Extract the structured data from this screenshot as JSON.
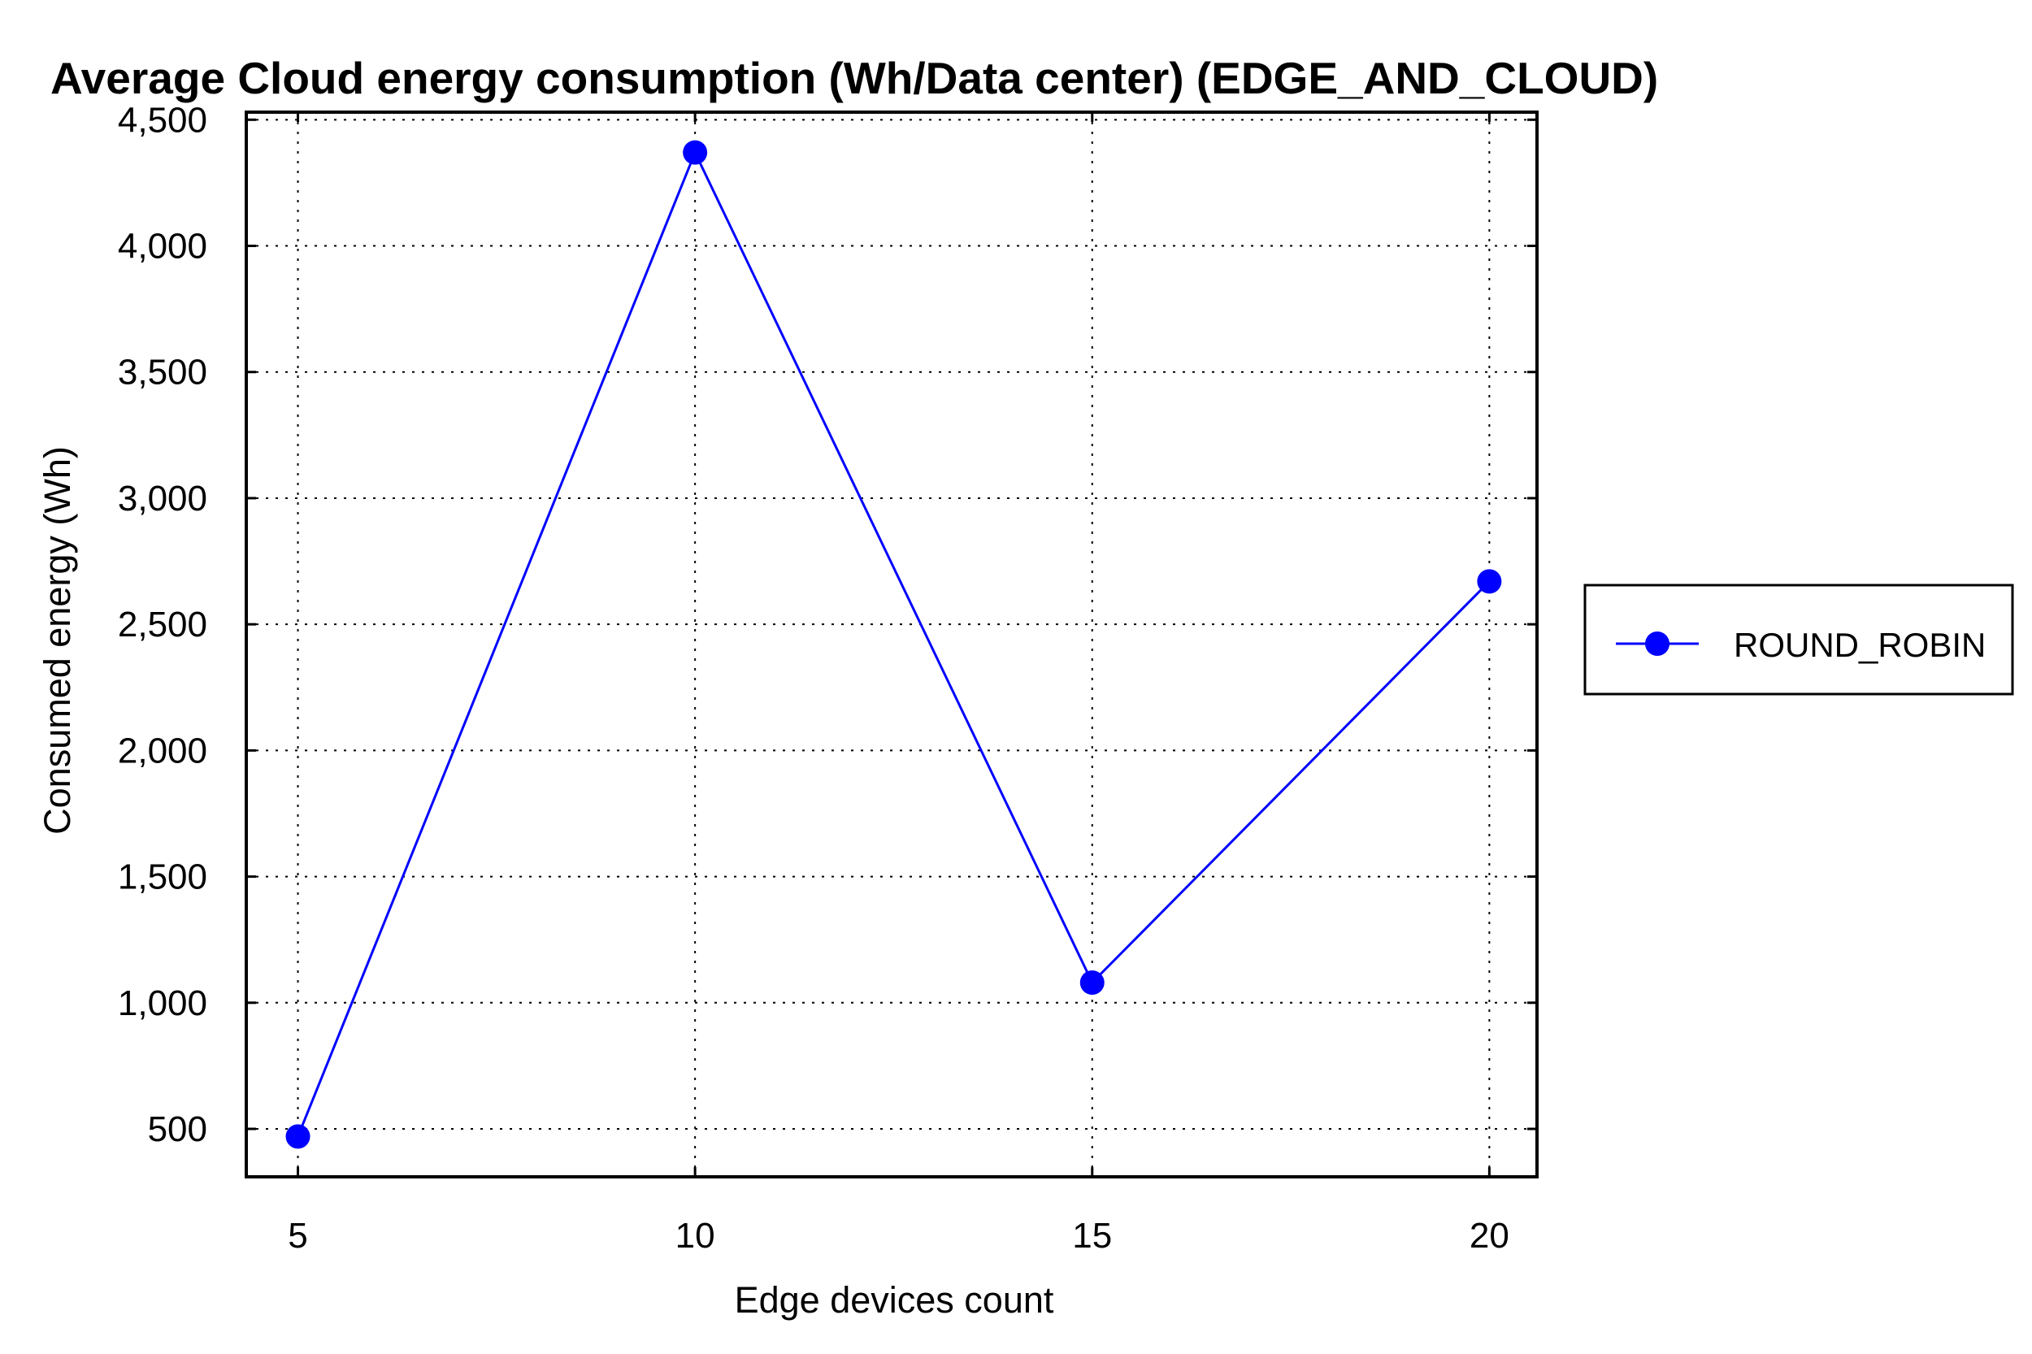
{
  "chart_data": {
    "type": "line",
    "title": "Average Cloud energy consumption (Wh/Data center) (EDGE_AND_CLOUD)",
    "xlabel": "Edge devices count",
    "ylabel": "Consumed energy (Wh)",
    "x": [
      5,
      10,
      15,
      20
    ],
    "x_tick_labels": [
      "5",
      "10",
      "15",
      "20"
    ],
    "y_tick_values": [
      500,
      1000,
      1500,
      2000,
      2500,
      3000,
      3500,
      4000,
      4500
    ],
    "y_tick_labels": [
      "500",
      "1,000",
      "1,500",
      "2,000",
      "2,500",
      "3,000",
      "3,500",
      "4,000",
      "4,500"
    ],
    "xlim": [
      4.35,
      20.6
    ],
    "ylim": [
      310,
      4530
    ],
    "grid": true,
    "legend_position": "right",
    "series": [
      {
        "name": "ROUND_ROBIN",
        "color": "#0000ff",
        "marker": "circle",
        "values": [
          470,
          4370,
          1080,
          2670
        ]
      }
    ]
  }
}
